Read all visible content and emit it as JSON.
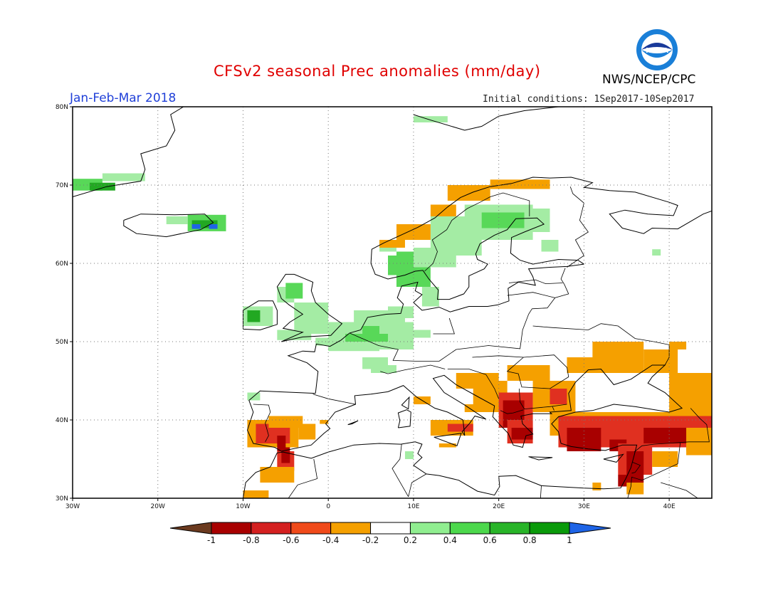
{
  "title": "CFSv2 seasonal Prec anomalies (mm/day)",
  "agency": "NWS/NCEP/CPC",
  "logo_text": "NOAA",
  "season": "Jan-Feb-Mar 2018",
  "initial_conditions": "Initial conditions: 1Sep2017-10Sep2017",
  "map": {
    "lon_range": [
      -30,
      45
    ],
    "lat_range": [
      30,
      80
    ],
    "lat_labels": [
      "30N",
      "40N",
      "50N",
      "60N",
      "70N",
      "80N"
    ],
    "lat_values": [
      30,
      40,
      50,
      60,
      70,
      80
    ],
    "lon_labels": [
      "30W",
      "20W",
      "10W",
      "0",
      "10E",
      "20E",
      "30E",
      "40E"
    ],
    "lon_values": [
      -30,
      -20,
      -10,
      0,
      10,
      20,
      30,
      40
    ],
    "grid": "dotted"
  },
  "colorbar": {
    "labels": [
      "-1",
      "-0.8",
      "-0.6",
      "-0.4",
      "-0.2",
      "0.2",
      "0.4",
      "0.6",
      "0.8",
      "1"
    ],
    "colors": [
      "#6b3a1f",
      "#a80000",
      "#d42020",
      "#f04a1a",
      "#f5a000",
      "#ffffff",
      "#90ee90",
      "#4cd84c",
      "#28b428",
      "#0a9a0a",
      "#1e64e6"
    ]
  },
  "anomaly_palette": {
    "dry_strong": "#a80000",
    "dry_mod": "#e03020",
    "dry_weak": "#f5a000",
    "wet_weak": "#a4eca4",
    "wet_mod": "#58d858",
    "wet_strong": "#22a822",
    "wet_extreme": "#1e64e6"
  }
}
